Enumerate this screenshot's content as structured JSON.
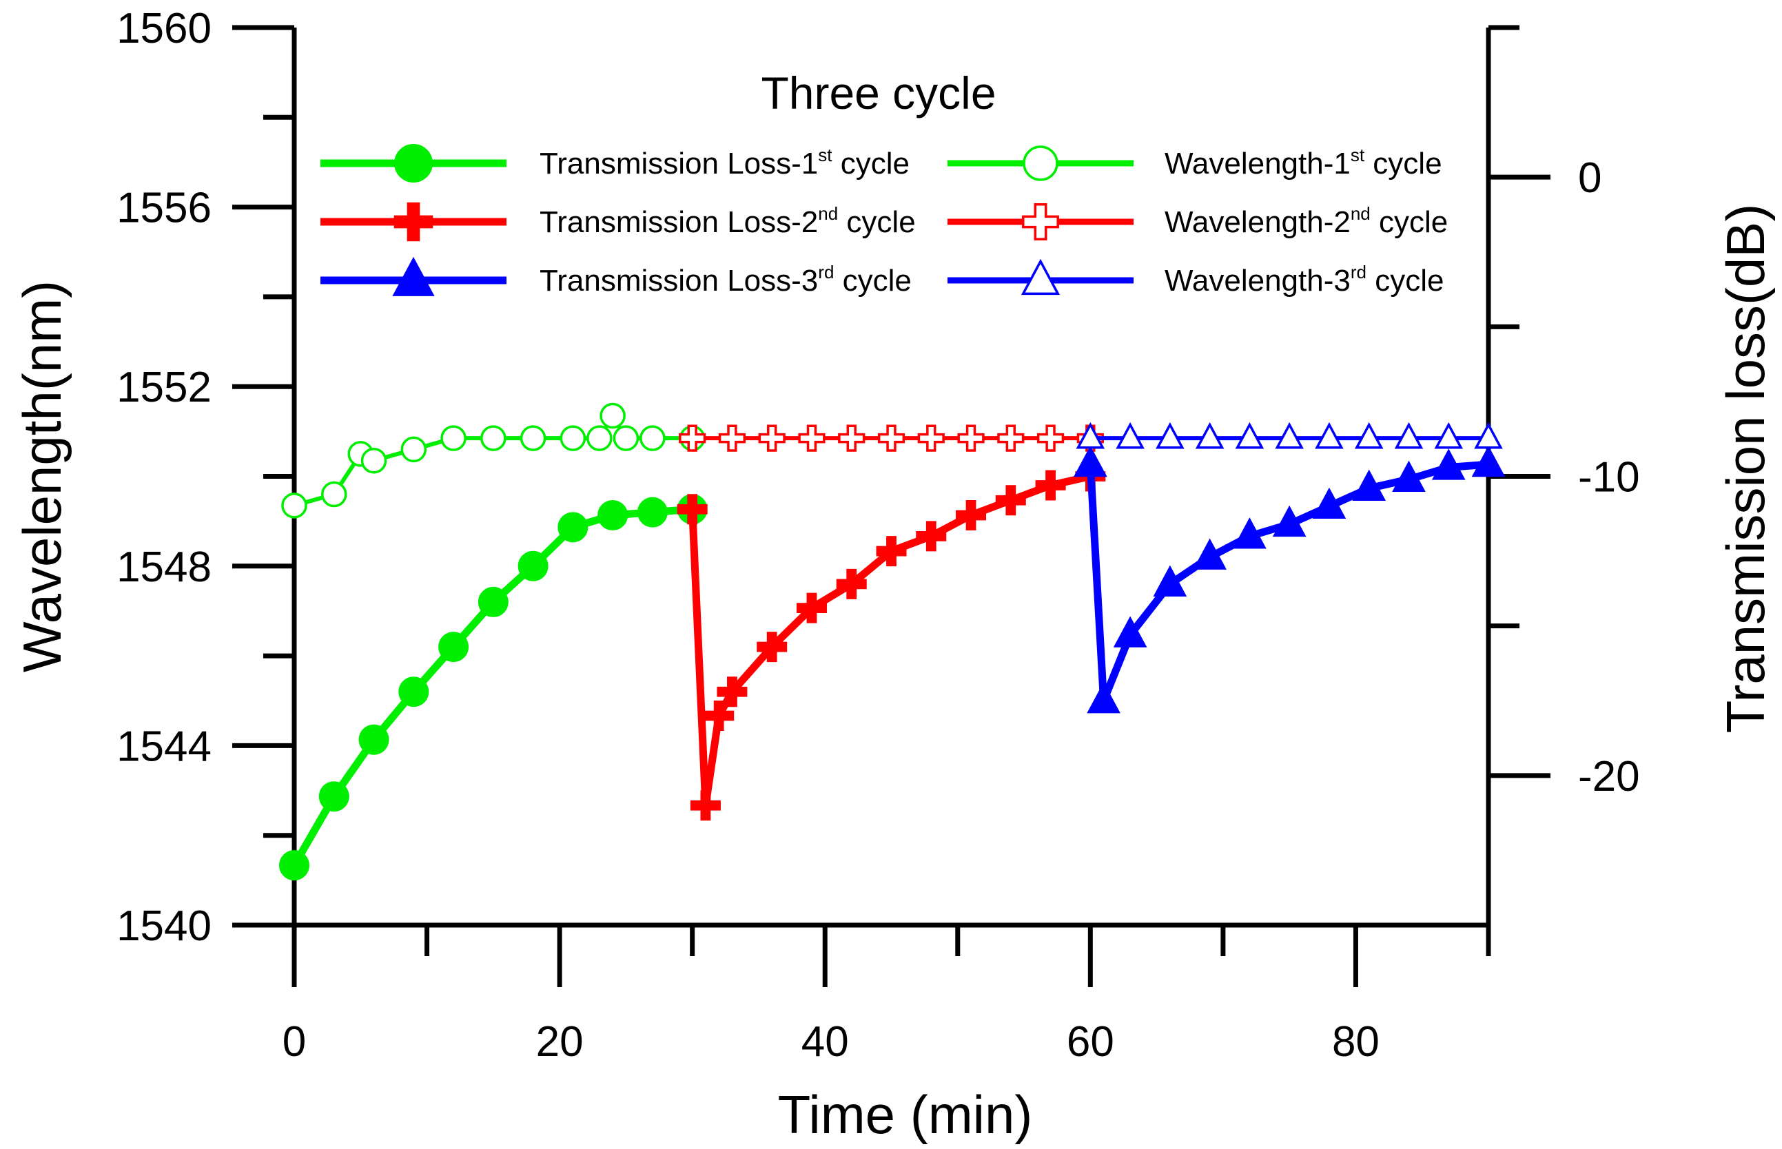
{
  "chart_data": {
    "type": "line",
    "title": "Three cycle",
    "xlabel": "Time (min)",
    "ylabel_left": "Wavelength(nm)",
    "ylabel_right": "Transmission loss(dB)",
    "xlim": [
      0,
      90
    ],
    "ylim_left": [
      1540,
      1560
    ],
    "ylim_right": [
      -25,
      5
    ],
    "x_ticks": [
      0,
      20,
      40,
      60,
      80
    ],
    "x_minor_ticks": [
      10,
      30,
      50,
      70,
      90
    ],
    "y_left_ticks": [
      1540,
      1544,
      1548,
      1552,
      1556,
      1560
    ],
    "y_left_minor_ticks": [
      1542,
      1546,
      1550,
      1554,
      1558
    ],
    "y_right_ticks": [
      -20,
      -10,
      0
    ],
    "y_right_minor_ticks": [
      -15,
      -5
    ],
    "grid": false,
    "legend_placement": "top-center",
    "colors": {
      "cycle1": "#00ee00",
      "cycle2": "#ff0000",
      "cycle3": "#0000ff"
    },
    "series": [
      {
        "name": "Transmission Loss-1st cycle",
        "label_base": "Transmission Loss-1",
        "label_sup": "st",
        "label_tail": " cycle",
        "axis": "right",
        "color": "#00ee00",
        "marker": "circle",
        "filled": true,
        "x": [
          0,
          3,
          6,
          9,
          12,
          15,
          18,
          21,
          24,
          27,
          30
        ],
        "y": [
          -23.0,
          -20.7,
          -18.8,
          -17.2,
          -15.7,
          -14.2,
          -13.0,
          -11.7,
          -11.3,
          -11.2,
          -11.1
        ]
      },
      {
        "name": "Wavelength-1st cycle",
        "label_base": "Wavelength-1",
        "label_sup": "st",
        "label_tail": " cycle",
        "axis": "left",
        "color": "#00ee00",
        "marker": "circle",
        "filled": false,
        "x": [
          0,
          3,
          5,
          6,
          9,
          12,
          15,
          18,
          21,
          23,
          24,
          25,
          27,
          30
        ],
        "y": [
          1549.35,
          1549.6,
          1550.5,
          1550.35,
          1550.6,
          1550.85,
          1550.85,
          1550.85,
          1550.85,
          1550.85,
          1551.35,
          1550.85,
          1550.85,
          1550.85
        ]
      },
      {
        "name": "Transmission Loss-2nd cycle",
        "label_base": "Transmission Loss-2",
        "label_sup": "nd",
        "label_tail": " cycle",
        "axis": "right",
        "color": "#ff0000",
        "marker": "plus",
        "filled": true,
        "x": [
          30,
          31,
          32,
          33,
          36,
          39,
          42,
          45,
          48,
          51,
          54,
          57,
          60
        ],
        "y": [
          -11.1,
          -21.0,
          -18.0,
          -17.2,
          -15.7,
          -14.4,
          -13.6,
          -12.5,
          -12.0,
          -11.3,
          -10.8,
          -10.3,
          -10.0
        ]
      },
      {
        "name": "Wavelength-2nd cycle",
        "label_base": "Wavelength-2",
        "label_sup": "nd",
        "label_tail": " cycle",
        "axis": "left",
        "color": "#ff0000",
        "marker": "plus",
        "filled": false,
        "x": [
          30,
          33,
          36,
          39,
          42,
          45,
          48,
          51,
          54,
          57,
          60
        ],
        "y": [
          1550.85,
          1550.85,
          1550.85,
          1550.85,
          1550.85,
          1550.85,
          1550.85,
          1550.85,
          1550.85,
          1550.85,
          1550.85
        ]
      },
      {
        "name": "Transmission Loss-3rd cycle",
        "label_base": "Transmission Loss-3",
        "label_sup": "rd",
        "label_tail": " cycle",
        "axis": "right",
        "color": "#0000ff",
        "marker": "triangle",
        "filled": true,
        "x": [
          60,
          61,
          63,
          66,
          69,
          72,
          75,
          78,
          81,
          84,
          87,
          90
        ],
        "y": [
          -9.6,
          -17.5,
          -15.3,
          -13.6,
          -12.7,
          -12.0,
          -11.6,
          -11.0,
          -10.4,
          -10.1,
          -9.7,
          -9.6
        ]
      },
      {
        "name": "Wavelength-3rd cycle",
        "label_base": "Wavelength-3",
        "label_sup": "rd",
        "label_tail": " cycle",
        "axis": "left",
        "color": "#0000ff",
        "marker": "triangle",
        "filled": false,
        "x": [
          60,
          63,
          66,
          69,
          72,
          75,
          78,
          81,
          84,
          87,
          90
        ],
        "y": [
          1550.85,
          1550.85,
          1550.85,
          1550.85,
          1550.85,
          1550.85,
          1550.85,
          1550.85,
          1550.85,
          1550.85,
          1550.85
        ]
      }
    ]
  }
}
